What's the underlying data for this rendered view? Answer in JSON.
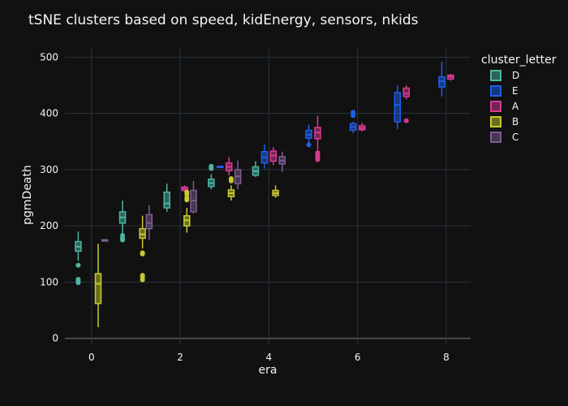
{
  "chart_data": {
    "type": "box",
    "title": "tSNE clusters based on speed, kidEnergy, sensors, nkids",
    "xlabel": "era",
    "ylabel": "pgmDeath",
    "xlim": [
      -0.6,
      8.55
    ],
    "ylim": [
      -12,
      515
    ],
    "x_ticks": [
      0,
      2,
      4,
      6,
      8
    ],
    "y_ticks": [
      0,
      100,
      200,
      300,
      400,
      500
    ],
    "grid": true,
    "legend": {
      "title": "cluster_letter",
      "placement": "right",
      "entries": [
        "D",
        "E",
        "A",
        "B",
        "C"
      ]
    },
    "colors": {
      "D": "#4cb5a5",
      "E": "#1f5fe8",
      "A": "#d63b92",
      "B": "#c9c932",
      "C": "#7e5b94"
    },
    "series": [
      {
        "name": "D",
        "boxes": [
          {
            "era": 0,
            "whisker_low": 138,
            "q1": 155,
            "median": 163,
            "q3": 172,
            "whisker_high": 190,
            "outliers": [
              130,
              105,
              102,
              99
            ]
          },
          {
            "era": 1,
            "whisker_low": 185,
            "q1": 205,
            "median": 215,
            "q3": 225,
            "whisker_high": 245,
            "outliers": [
              183,
              178,
              175
            ]
          },
          {
            "era": 2,
            "whisker_low": 225,
            "q1": 232,
            "median": 240,
            "q3": 260,
            "whisker_high": 275,
            "outliers": []
          },
          {
            "era": 3,
            "whisker_low": 265,
            "q1": 270,
            "median": 276,
            "q3": 283,
            "whisker_high": 292,
            "outliers": [
              302,
              305,
              306
            ]
          },
          {
            "era": 4,
            "whisker_low": 287,
            "q1": 290,
            "median": 297,
            "q3": 305,
            "whisker_high": 315,
            "outliers": []
          }
        ]
      },
      {
        "name": "E",
        "boxes": [
          {
            "era": 3,
            "whisker_low": 303,
            "q1": 304,
            "median": 305,
            "q3": 306,
            "whisker_high": 307,
            "outliers": []
          },
          {
            "era": 4,
            "whisker_low": 302,
            "q1": 312,
            "median": 322,
            "q3": 332,
            "whisker_high": 345,
            "outliers": []
          },
          {
            "era": 5,
            "whisker_low": 348,
            "q1": 356,
            "median": 362,
            "q3": 370,
            "whisker_high": 380,
            "outliers": [
              344
            ]
          },
          {
            "era": 6,
            "whisker_low": 365,
            "q1": 370,
            "median": 376,
            "q3": 382,
            "whisker_high": 385,
            "outliers": [
              396,
              400,
              402
            ]
          },
          {
            "era": 7,
            "whisker_low": 372,
            "q1": 385,
            "median": 415,
            "q3": 437,
            "whisker_high": 450,
            "outliers": []
          },
          {
            "era": 8,
            "whisker_low": 430,
            "q1": 447,
            "median": 457,
            "q3": 465,
            "whisker_high": 492,
            "outliers": []
          }
        ]
      },
      {
        "name": "A",
        "boxes": [
          {
            "era": 2,
            "whisker_low": 260,
            "q1": 263,
            "median": 266,
            "q3": 269,
            "whisker_high": 272,
            "outliers": []
          },
          {
            "era": 3,
            "whisker_low": 290,
            "q1": 298,
            "median": 305,
            "q3": 312,
            "whisker_high": 322,
            "outliers": []
          },
          {
            "era": 4,
            "whisker_low": 308,
            "q1": 315,
            "median": 325,
            "q3": 333,
            "whisker_high": 340,
            "outliers": []
          },
          {
            "era": 5,
            "whisker_low": 335,
            "q1": 355,
            "median": 366,
            "q3": 375,
            "whisker_high": 396,
            "outliers": [
              330,
              326,
              322,
              318
            ]
          },
          {
            "era": 6,
            "whisker_low": 368,
            "q1": 371,
            "median": 374,
            "q3": 378,
            "whisker_high": 383,
            "outliers": []
          },
          {
            "era": 7,
            "whisker_low": 425,
            "q1": 430,
            "median": 435,
            "q3": 445,
            "whisker_high": 450,
            "outliers": [
              387
            ]
          },
          {
            "era": 8,
            "whisker_low": 458,
            "q1": 461,
            "median": 465,
            "q3": 468,
            "whisker_high": 470,
            "outliers": []
          }
        ]
      },
      {
        "name": "B",
        "boxes": [
          {
            "era": 0,
            "whisker_low": 20,
            "q1": 62,
            "median": 97,
            "q3": 115,
            "whisker_high": 168,
            "outliers": []
          },
          {
            "era": 1,
            "whisker_low": 160,
            "q1": 178,
            "median": 185,
            "q3": 195,
            "whisker_high": 218,
            "outliers": [
              152,
              150,
              112,
              108,
              104
            ]
          },
          {
            "era": 2,
            "whisker_low": 188,
            "q1": 200,
            "median": 210,
            "q3": 218,
            "whisker_high": 232,
            "outliers": [
              246,
              250,
              256,
              260
            ]
          },
          {
            "era": 3,
            "whisker_low": 245,
            "q1": 252,
            "median": 258,
            "q3": 264,
            "whisker_high": 272,
            "outliers": [
              280,
              284
            ]
          },
          {
            "era": 4,
            "whisker_low": 250,
            "q1": 254,
            "median": 258,
            "q3": 263,
            "whisker_high": 272,
            "outliers": []
          }
        ]
      },
      {
        "name": "C",
        "boxes": [
          {
            "era": 0,
            "whisker_low": 175,
            "q1": 175,
            "median": 175,
            "q3": 175,
            "whisker_high": 175,
            "outliers": []
          },
          {
            "era": 1,
            "whisker_low": 175,
            "q1": 195,
            "median": 205,
            "q3": 220,
            "whisker_high": 237,
            "outliers": []
          },
          {
            "era": 2,
            "whisker_low": 222,
            "q1": 225,
            "median": 245,
            "q3": 263,
            "whisker_high": 280,
            "outliers": []
          },
          {
            "era": 3,
            "whisker_low": 265,
            "q1": 275,
            "median": 288,
            "q3": 300,
            "whisker_high": 316,
            "outliers": []
          },
          {
            "era": 4,
            "whisker_low": 296,
            "q1": 310,
            "median": 316,
            "q3": 323,
            "whisker_high": 332,
            "outliers": []
          }
        ]
      }
    ]
  }
}
